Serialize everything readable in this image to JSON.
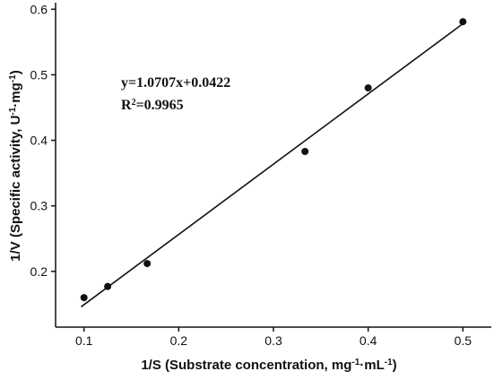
{
  "chart_data": {
    "type": "scatter",
    "xlabel": [
      {
        "text": "1/S (Substrate concentration, mg"
      },
      {
        "text": "-1",
        "sup": true
      },
      {
        "text": "·mL"
      },
      {
        "text": "-1",
        "sup": true
      },
      {
        "text": ")"
      }
    ],
    "ylabel": [
      {
        "text": "1/V (Specific activity, U"
      },
      {
        "text": "-1",
        "sup": true
      },
      {
        "text": "·mg"
      },
      {
        "text": "-1",
        "sup": true
      },
      {
        "text": ")"
      }
    ],
    "annotations": [
      [
        {
          "text": "y=1.0707x+0.0422"
        }
      ],
      [
        {
          "text": "R"
        },
        {
          "text": "2",
          "sup": true
        },
        {
          "text": "=0.9965"
        }
      ]
    ],
    "xlim": [
      0.07,
      0.53
    ],
    "ylim": [
      0.115,
      0.61
    ],
    "xticks": [
      0.1,
      0.2,
      0.3,
      0.4,
      0.5
    ],
    "yticks": [
      0.2,
      0.3,
      0.4,
      0.5,
      0.6
    ],
    "series": [
      {
        "mode": "markers",
        "color": "#111111",
        "x": [
          0.1,
          0.125,
          0.1667,
          0.3333,
          0.4,
          0.5
        ],
        "values": [
          0.16,
          0.177,
          0.212,
          0.383,
          0.48,
          0.581
        ]
      },
      {
        "mode": "line",
        "color": "#111111",
        "x": [
          0.097,
          0.5
        ],
        "values": [
          0.146,
          0.578
        ]
      }
    ]
  }
}
